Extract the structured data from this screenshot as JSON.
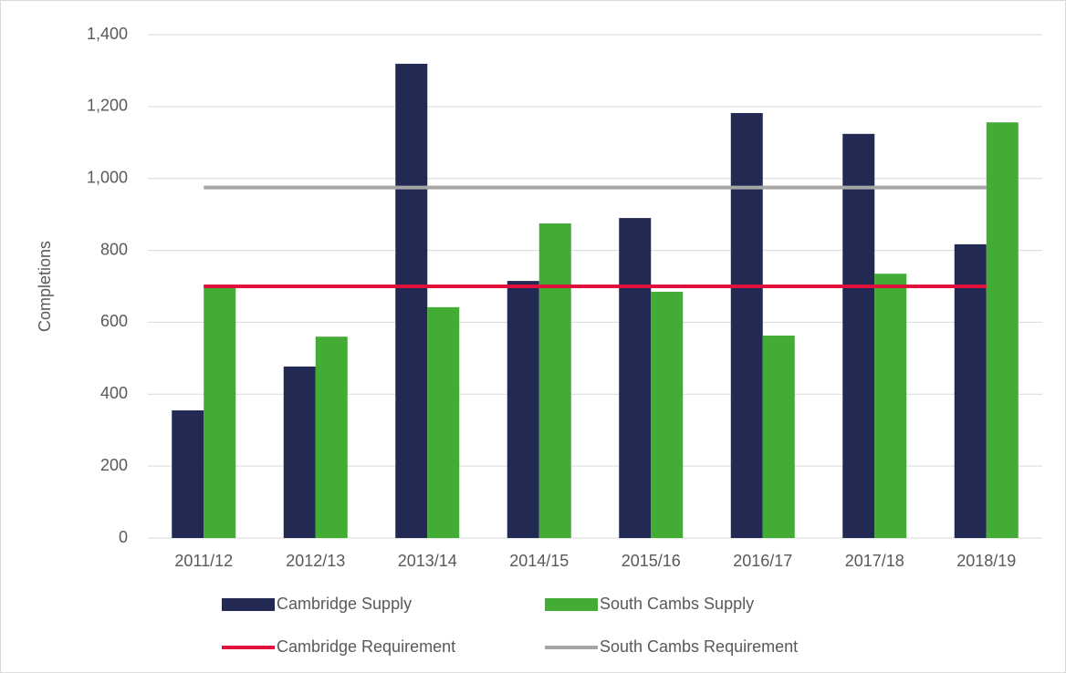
{
  "chart_data": {
    "type": "bar",
    "y_label": "Completions",
    "categories": [
      "2011/12",
      "2012/13",
      "2013/14",
      "2014/15",
      "2015/16",
      "2016/17",
      "2017/18",
      "2018/19"
    ],
    "series": [
      {
        "name": "Cambridge Supply",
        "color": "#222a54",
        "type": "bar",
        "values": [
          355,
          477,
          1319,
          715,
          890,
          1182,
          1124,
          817
        ]
      },
      {
        "name": "South Cambs Supply",
        "color": "#43ac34",
        "type": "bar",
        "values": [
          702,
          560,
          642,
          875,
          685,
          563,
          735,
          1156
        ]
      },
      {
        "name": "Cambridge Requirement",
        "color": "#e0103c",
        "type": "line",
        "values": [
          700,
          700,
          700,
          700,
          700,
          700,
          700,
          700
        ]
      },
      {
        "name": "South Cambs Requirement",
        "color": "#a6a6a6",
        "type": "line",
        "values": [
          975,
          975,
          975,
          975,
          975,
          975,
          975,
          975
        ]
      }
    ],
    "ylim": [
      0,
      1400
    ],
    "yticks": [
      0,
      200,
      400,
      600,
      800,
      {
        "value": 1000,
        "label": "1,000"
      },
      {
        "value": 1200,
        "label": "1,200"
      },
      {
        "value": 1400,
        "label": "1,400"
      }
    ],
    "grid": true,
    "legend": "bottom"
  }
}
